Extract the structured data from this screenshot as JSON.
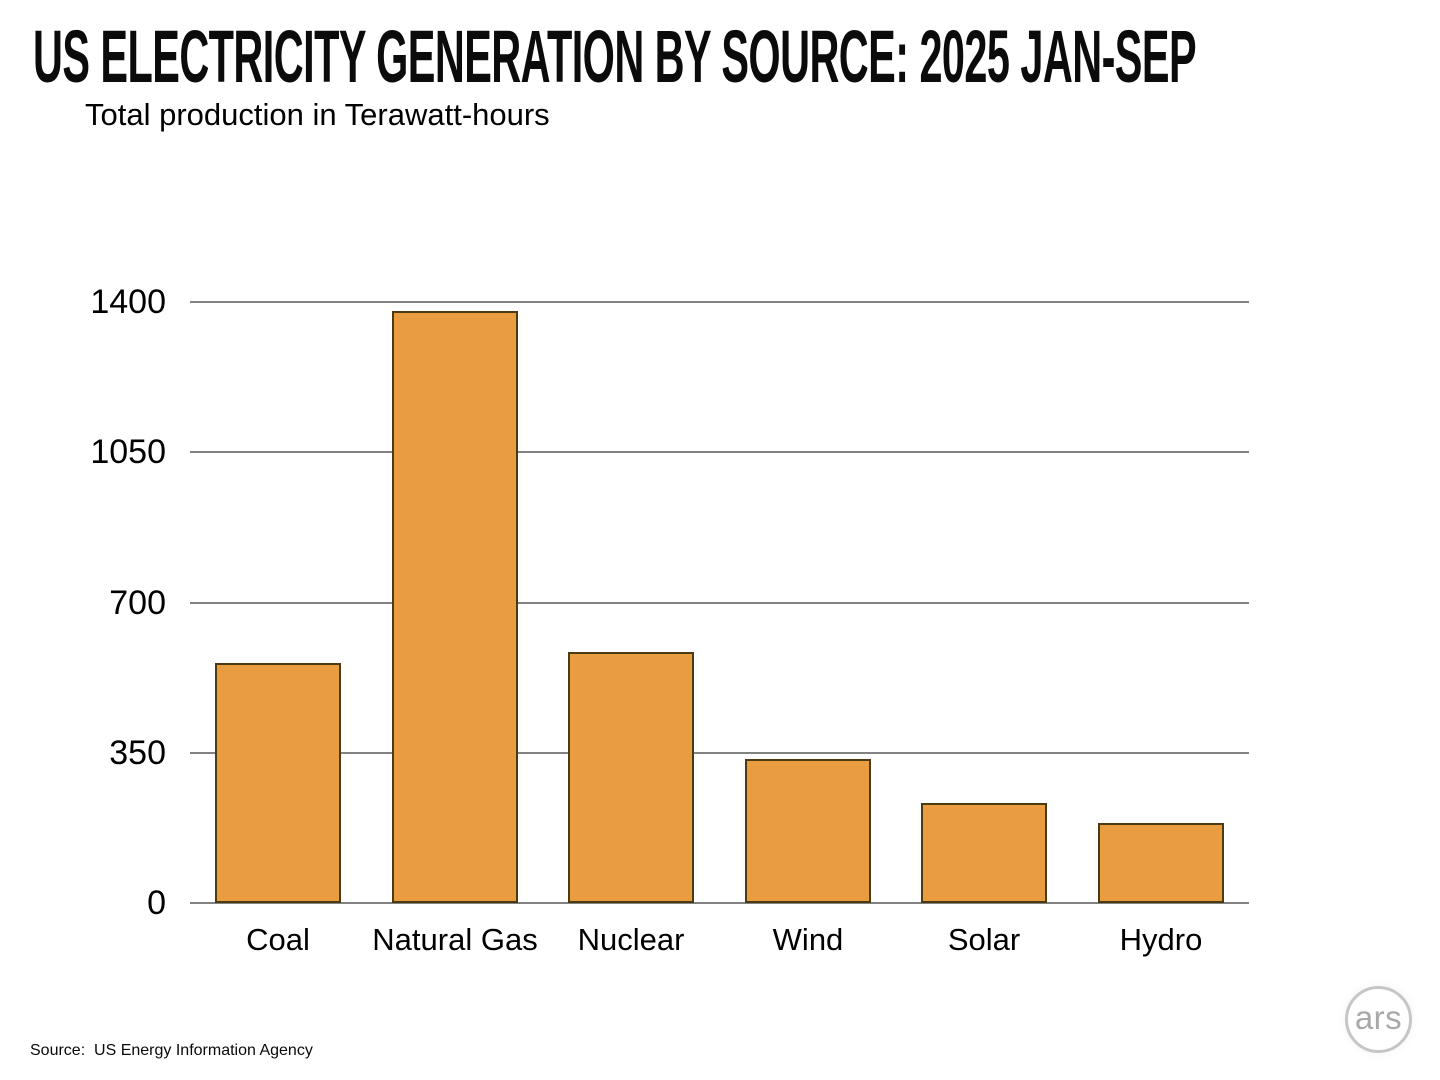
{
  "header": {
    "title": "US ELECTRICITY GENERATION BY SOURCE: 2025 JAN-SEP",
    "subtitle": "Total production in Terawatt-hours"
  },
  "footer": {
    "source": "Source:  US Energy Information Agency",
    "logo_text": "ars"
  },
  "colors": {
    "bar_fill": "#EA9C40",
    "bar_border": "#4A3B10",
    "gridline": "#828282",
    "text": "#000000",
    "logo_gray": "#A9A9A9"
  },
  "chart_data": {
    "type": "bar",
    "title": "US ELECTRICITY GENERATION BY SOURCE: 2025 JAN-SEP",
    "subtitle": "Total production in Terawatt-hours",
    "categories": [
      "Coal",
      "Natural Gas",
      "Nuclear",
      "Wind",
      "Solar",
      "Hydro"
    ],
    "values": [
      560,
      1380,
      585,
      335,
      233,
      187
    ],
    "xlabel": "",
    "ylabel": "Total production in Terawatt-hours",
    "ylim": [
      0,
      1400
    ],
    "yticks": [
      0,
      350,
      700,
      1050,
      1400
    ],
    "grid": true,
    "legend": false,
    "source": "US Energy Information Agency"
  }
}
